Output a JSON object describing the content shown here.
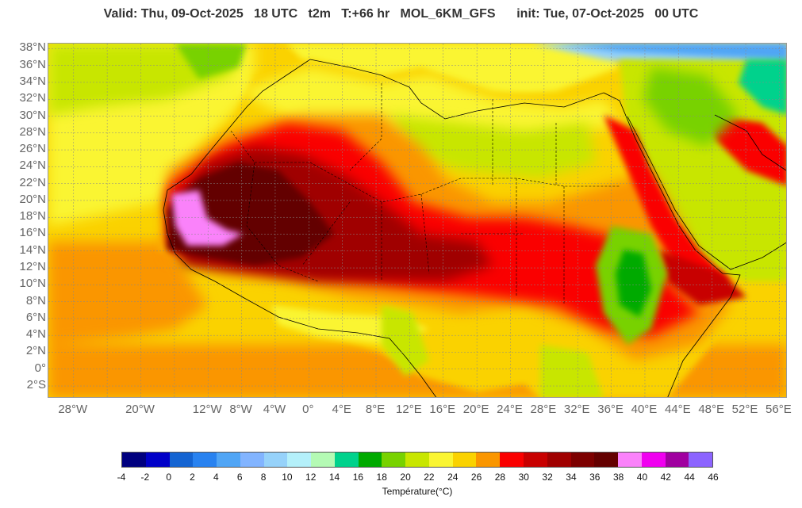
{
  "title": "Valid: Thu, 09-Oct-2025   18 UTC   t2m   T:+66 hr   MOL_6KM_GFS      init: Tue, 07-Oct-2025   00 UTC",
  "map": {
    "lon_range": [
      -31,
      57
    ],
    "lat_range": [
      -3.5,
      38.6
    ],
    "lat_labels": [
      {
        "lat": 38,
        "text": "38°N"
      },
      {
        "lat": 36,
        "text": "36°N"
      },
      {
        "lat": 34,
        "text": "34°N"
      },
      {
        "lat": 32,
        "text": "32°N"
      },
      {
        "lat": 30,
        "text": "30°N"
      },
      {
        "lat": 28,
        "text": "28°N"
      },
      {
        "lat": 26,
        "text": "26°N"
      },
      {
        "lat": 24,
        "text": "24°N"
      },
      {
        "lat": 22,
        "text": "22°N"
      },
      {
        "lat": 20,
        "text": "20°N"
      },
      {
        "lat": 18,
        "text": "18°N"
      },
      {
        "lat": 16,
        "text": "16°N"
      },
      {
        "lat": 14,
        "text": "14°N"
      },
      {
        "lat": 12,
        "text": "12°N"
      },
      {
        "lat": 10,
        "text": "10°N"
      },
      {
        "lat": 8,
        "text": "8°N"
      },
      {
        "lat": 6,
        "text": "6°N"
      },
      {
        "lat": 4,
        "text": "4°N"
      },
      {
        "lat": 2,
        "text": "2°N"
      },
      {
        "lat": 0,
        "text": "0°"
      },
      {
        "lat": -2,
        "text": "2°S"
      }
    ],
    "lon_labels": [
      {
        "lon": -28,
        "text": "28°W"
      },
      {
        "lon": -20,
        "text": "20°W"
      },
      {
        "lon": -12,
        "text": "12°W"
      },
      {
        "lon": -8,
        "text": "8°W"
      },
      {
        "lon": -4,
        "text": "4°W"
      },
      {
        "lon": 0,
        "text": "0°"
      },
      {
        "lon": 4,
        "text": "4°E"
      },
      {
        "lon": 8,
        "text": "8°E"
      },
      {
        "lon": 12,
        "text": "12°E"
      },
      {
        "lon": 16,
        "text": "16°E"
      },
      {
        "lon": 20,
        "text": "20°E"
      },
      {
        "lon": 24,
        "text": "24°E"
      },
      {
        "lon": 28,
        "text": "28°E"
      },
      {
        "lon": 32,
        "text": "32°E"
      },
      {
        "lon": 36,
        "text": "36°E"
      },
      {
        "lon": 40,
        "text": "40°E"
      },
      {
        "lon": 44,
        "text": "44°E"
      },
      {
        "lon": 48,
        "text": "48°E"
      },
      {
        "lon": 52,
        "text": "52°E"
      },
      {
        "lon": 56,
        "text": "56°E"
      }
    ]
  },
  "colorbar": {
    "colors": [
      "#00007f",
      "#0000c8",
      "#1464d2",
      "#2882f0",
      "#50a5f5",
      "#82b4ff",
      "#96d2fa",
      "#b4f0fa",
      "#b4fab4",
      "#00d28c",
      "#00aa00",
      "#78d200",
      "#c8e600",
      "#faf532",
      "#fad200",
      "#fa9600",
      "#fa0000",
      "#c80000",
      "#a00000",
      "#7d0000",
      "#640000",
      "#fa82fa",
      "#f000f0",
      "#a000a0",
      "#8c64ff"
    ],
    "ticks": [
      "-4",
      "-2",
      "0",
      "2",
      "4",
      "6",
      "8",
      "10",
      "12",
      "14",
      "16",
      "18",
      "20",
      "22",
      "24",
      "26",
      "28",
      "30",
      "32",
      "34",
      "36",
      "38",
      "40",
      "42",
      "44",
      "46"
    ],
    "label": "Température(°C)"
  }
}
